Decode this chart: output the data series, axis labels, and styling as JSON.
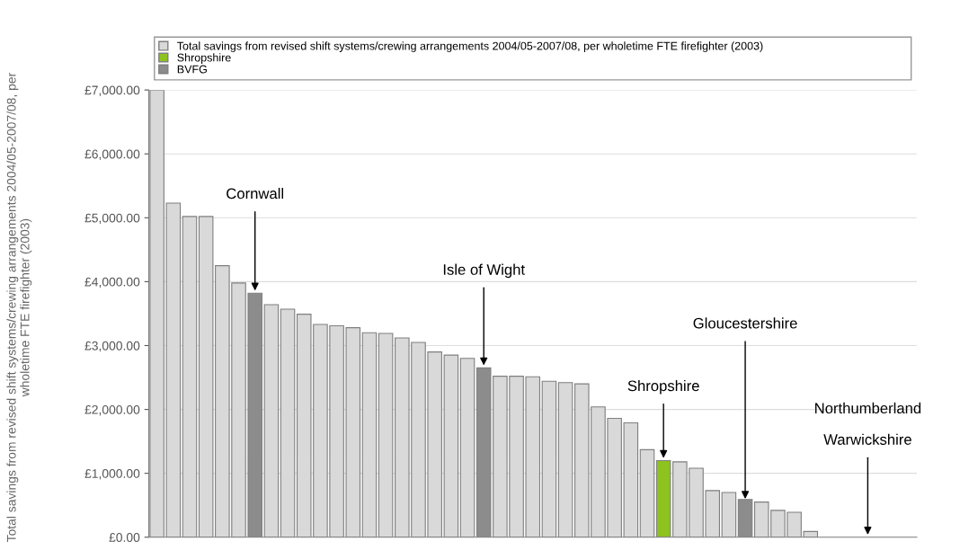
{
  "chart_data": {
    "type": "bar",
    "ylabel": "Total savings from revised shift systems/crewing arrangements 2004/05-2007/08, per wholetime FTE firefighter (2003)",
    "categories": [
      null,
      null,
      null,
      null,
      null,
      null,
      null,
      null,
      null,
      null,
      null,
      null,
      null,
      null,
      null,
      null,
      null,
      null,
      null,
      null,
      null,
      null,
      null,
      null,
      null,
      null,
      null,
      null,
      null,
      null,
      null,
      null,
      null,
      null,
      null,
      null,
      null,
      null,
      null,
      null,
      null,
      null,
      null,
      null,
      null,
      null,
      null
    ],
    "series": [
      {
        "name": "Total savings from revised shift systems/crewing arrangements 2004/05-2007/08, per wholetime FTE firefighter (2003)",
        "color": "#d9d9d9",
        "values": [
          7000,
          5230,
          5020,
          5020,
          4250,
          3980,
          null,
          3640,
          3570,
          3490,
          3330,
          3310,
          3280,
          3200,
          3190,
          3120,
          3050,
          2900,
          2850,
          2800,
          null,
          2520,
          2520,
          2510,
          2440,
          2420,
          2400,
          2040,
          1860,
          1790,
          1370,
          null,
          1180,
          1080,
          730,
          700,
          null,
          550,
          420,
          390,
          90,
          0,
          0,
          0,
          0,
          0,
          0
        ]
      },
      {
        "name": "Shropshire",
        "color": "#8dc21f",
        "values": [
          null,
          null,
          null,
          null,
          null,
          null,
          null,
          null,
          null,
          null,
          null,
          null,
          null,
          null,
          null,
          null,
          null,
          null,
          null,
          null,
          null,
          null,
          null,
          null,
          null,
          null,
          null,
          null,
          null,
          null,
          null,
          1200,
          null,
          null,
          null,
          null,
          null,
          null,
          null,
          null,
          null,
          null,
          null,
          null,
          null,
          null,
          null
        ]
      },
      {
        "name": "BVFG",
        "color": "#8c8c8c",
        "values": [
          null,
          null,
          null,
          null,
          null,
          null,
          3820,
          null,
          null,
          null,
          null,
          null,
          null,
          null,
          null,
          null,
          null,
          null,
          null,
          null,
          2650,
          null,
          null,
          null,
          null,
          null,
          null,
          null,
          null,
          null,
          null,
          null,
          null,
          null,
          null,
          null,
          590,
          null,
          null,
          null,
          null,
          null,
          null,
          null,
          null,
          null,
          null
        ]
      }
    ],
    "ylim": [
      0,
      7000
    ],
    "yticks": [
      {
        "value": 0,
        "label": "£0.00"
      },
      {
        "value": 1000,
        "label": "£1,000.00"
      },
      {
        "value": 2000,
        "label": "£2,000.00"
      },
      {
        "value": 3000,
        "label": "£3,000.00"
      },
      {
        "value": 4000,
        "label": "£4,000.00"
      },
      {
        "value": 5000,
        "label": "£5,000.00"
      },
      {
        "value": 6000,
        "label": "£6,000.00"
      },
      {
        "value": 7000,
        "label": "£7,000.00"
      }
    ],
    "grid": "y",
    "legend": "top",
    "annotations": [
      {
        "text": "Cornwall",
        "y": 3820
      },
      {
        "text": "Isle of Wight",
        "y": 2650
      },
      {
        "text": "Shropshire",
        "y": 1200
      },
      "Gloucestershire",
      "Northumberland",
      "Warwickshire"
    ]
  }
}
